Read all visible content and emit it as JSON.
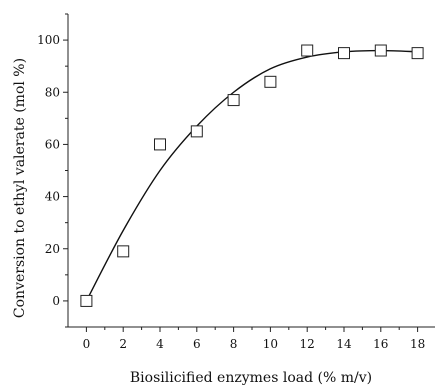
{
  "chart_data": {
    "type": "scatter",
    "title": "",
    "xlabel": "Biosilicified enzymes load (% m/v)",
    "ylabel": "Conversion to ethyl valerate (mol %)",
    "xlim": [
      -1,
      19
    ],
    "ylim": [
      -10,
      110
    ],
    "x_ticks": [
      0,
      2,
      4,
      6,
      8,
      10,
      12,
      14,
      16,
      18
    ],
    "y_ticks": [
      0,
      20,
      40,
      60,
      80,
      100
    ],
    "grid": false,
    "legend": "none",
    "series": [
      {
        "marker": "open-square",
        "x": [
          0,
          2,
          4,
          6,
          8,
          10,
          12,
          14,
          16,
          18
        ],
        "y": [
          0,
          19,
          60,
          65,
          77,
          84,
          96,
          95,
          96,
          95
        ]
      }
    ],
    "fit_curve": {
      "x": [
        0,
        2,
        4,
        6,
        8,
        10,
        12,
        14,
        16,
        18
      ],
      "y": [
        0,
        27,
        50,
        67,
        80,
        89,
        93.5,
        95.5,
        96,
        95.5
      ]
    }
  }
}
